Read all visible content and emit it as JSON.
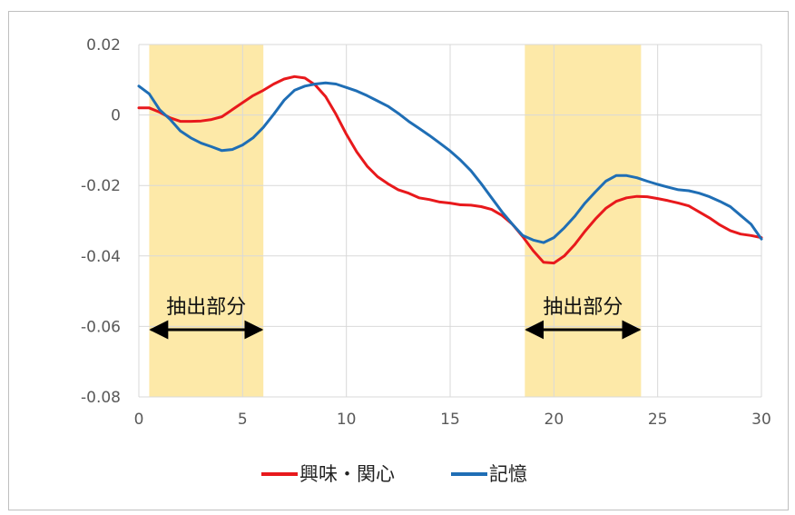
{
  "chart_data": {
    "type": "line",
    "title": "",
    "xlabel": "",
    "ylabel": "",
    "xlim": [
      0,
      30
    ],
    "ylim": [
      -0.08,
      0.02
    ],
    "x_ticks": [
      0,
      5,
      10,
      15,
      20,
      25,
      30
    ],
    "y_ticks": [
      0.02,
      0,
      -0.02,
      -0.04,
      -0.06,
      -0.08
    ],
    "x_tick_labels": [
      "0",
      "5",
      "10",
      "15",
      "20",
      "25",
      "30"
    ],
    "y_tick_labels": [
      "0.02",
      "0",
      "-0.02",
      "-0.04",
      "-0.06",
      "-0.08"
    ],
    "grid": true,
    "legend_position": "bottom",
    "highlight_regions": [
      {
        "x_start": 0.5,
        "x_end": 6.0,
        "label": "抽出部分",
        "color": "#fde9a8"
      },
      {
        "x_start": 18.6,
        "x_end": 24.2,
        "label": "抽出部分",
        "color": "#fde9a8"
      }
    ],
    "series": [
      {
        "name": "興味・関心",
        "color": "#e8191c",
        "x": [
          0,
          0.5,
          1,
          1.5,
          2,
          2.5,
          3,
          3.5,
          4,
          4.5,
          5,
          5.5,
          6,
          6.5,
          7,
          7.5,
          8,
          8.5,
          9,
          9.5,
          10,
          10.5,
          11,
          11.5,
          12,
          12.5,
          13,
          13.5,
          14,
          14.5,
          15,
          15.5,
          16,
          16.5,
          17,
          17.5,
          18,
          18.5,
          19,
          19.5,
          20,
          20.5,
          21,
          21.5,
          22,
          22.5,
          23,
          23.5,
          24,
          24.5,
          25,
          25.5,
          26,
          26.5,
          27,
          27.5,
          28,
          28.5,
          29,
          29.5,
          30
        ],
        "values": [
          0.002,
          0.002,
          0.0008,
          -0.0008,
          -0.0018,
          -0.0018,
          -0.0017,
          -0.0013,
          -0.0005,
          0.0015,
          0.0035,
          0.0055,
          0.007,
          0.0088,
          0.0102,
          0.0109,
          0.0105,
          0.0085,
          0.0052,
          0.0002,
          -0.0055,
          -0.0105,
          -0.0145,
          -0.0175,
          -0.0195,
          -0.0212,
          -0.0222,
          -0.0235,
          -0.024,
          -0.0247,
          -0.025,
          -0.0255,
          -0.0256,
          -0.026,
          -0.0268,
          -0.0285,
          -0.031,
          -0.0345,
          -0.0385,
          -0.0418,
          -0.042,
          -0.04,
          -0.0368,
          -0.033,
          -0.0295,
          -0.0265,
          -0.0245,
          -0.0235,
          -0.0231,
          -0.0232,
          -0.0237,
          -0.0243,
          -0.025,
          -0.0258,
          -0.0275,
          -0.0292,
          -0.0312,
          -0.0328,
          -0.0338,
          -0.0342,
          -0.0348
        ]
      },
      {
        "name": "記憶",
        "color": "#1f6eb5",
        "x": [
          0,
          0.5,
          1,
          1.5,
          2,
          2.5,
          3,
          3.5,
          4,
          4.5,
          5,
          5.5,
          6,
          6.5,
          7,
          7.5,
          8,
          8.5,
          9,
          9.5,
          10,
          10.5,
          11,
          11.5,
          12,
          12.5,
          13,
          13.5,
          14,
          14.5,
          15,
          15.5,
          16,
          16.5,
          17,
          17.5,
          18,
          18.5,
          19,
          19.5,
          20,
          20.5,
          21,
          21.5,
          22,
          22.5,
          23,
          23.5,
          24,
          24.5,
          25,
          25.5,
          26,
          26.5,
          27,
          27.5,
          28,
          28.5,
          29,
          29.5,
          30
        ],
        "values": [
          0.0082,
          0.006,
          0.0015,
          -0.0012,
          -0.0045,
          -0.0065,
          -0.008,
          -0.009,
          -0.0101,
          -0.0098,
          -0.0085,
          -0.0065,
          -0.0035,
          0.0002,
          0.0042,
          0.007,
          0.0082,
          0.0088,
          0.0091,
          0.0088,
          0.0078,
          0.0068,
          0.0055,
          0.004,
          0.0025,
          0.0005,
          -0.0018,
          -0.0038,
          -0.0058,
          -0.008,
          -0.0102,
          -0.0128,
          -0.0158,
          -0.0195,
          -0.0235,
          -0.0275,
          -0.031,
          -0.0342,
          -0.0355,
          -0.0362,
          -0.0348,
          -0.032,
          -0.0288,
          -0.025,
          -0.0218,
          -0.0188,
          -0.0172,
          -0.0172,
          -0.0178,
          -0.0188,
          -0.0197,
          -0.0205,
          -0.0212,
          -0.0215,
          -0.0222,
          -0.0232,
          -0.0245,
          -0.026,
          -0.0285,
          -0.031,
          -0.0352
        ]
      }
    ]
  }
}
